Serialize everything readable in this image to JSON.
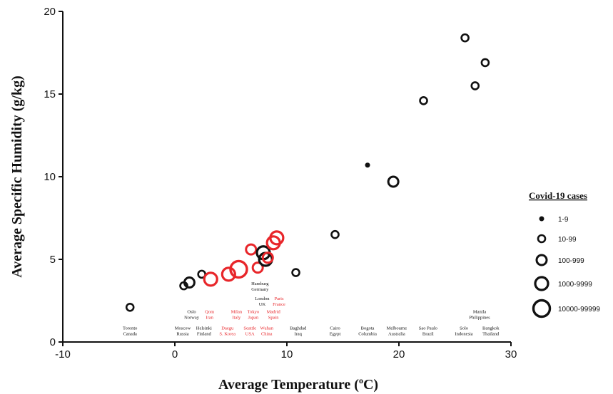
{
  "chart_data": {
    "type": "scatter",
    "xlabel": "Average Temperature (",
    "xlabel_sup": "o",
    "xlabel_end": "C)",
    "ylabel": "Average Specific Humidity (g/kg)",
    "xlim": [
      -10,
      30
    ],
    "ylim": [
      0,
      20
    ],
    "xticks": [
      -10,
      0,
      10,
      20,
      30
    ],
    "yticks": [
      0,
      5,
      10,
      15,
      20
    ],
    "colors": {
      "black": "#111111",
      "red": "#e8262a"
    },
    "points": [
      {
        "x": -4.0,
        "y": 2.1,
        "size": 1,
        "color": "black"
      },
      {
        "x": 0.8,
        "y": 3.4,
        "size": 1,
        "color": "black"
      },
      {
        "x": 1.3,
        "y": 3.6,
        "size": 2,
        "color": "black"
      },
      {
        "x": 2.4,
        "y": 4.1,
        "size": 1,
        "color": "black"
      },
      {
        "x": 3.2,
        "y": 3.8,
        "size": 3,
        "color": "red"
      },
      {
        "x": 4.8,
        "y": 4.1,
        "size": 3,
        "color": "red"
      },
      {
        "x": 5.7,
        "y": 4.4,
        "size": 4,
        "color": "red"
      },
      {
        "x": 6.8,
        "y": 5.6,
        "size": 2,
        "color": "red"
      },
      {
        "x": 7.4,
        "y": 4.5,
        "size": 2,
        "color": "red"
      },
      {
        "x": 7.9,
        "y": 5.4,
        "size": 3,
        "color": "black"
      },
      {
        "x": 8.1,
        "y": 5.0,
        "size": 3,
        "color": "black"
      },
      {
        "x": 8.3,
        "y": 5.1,
        "size": 2,
        "color": "red"
      },
      {
        "x": 8.8,
        "y": 6.0,
        "size": 3,
        "color": "red"
      },
      {
        "x": 9.1,
        "y": 6.3,
        "size": 3,
        "color": "red"
      },
      {
        "x": 10.8,
        "y": 4.2,
        "size": 1,
        "color": "black"
      },
      {
        "x": 14.3,
        "y": 6.5,
        "size": 1,
        "color": "black"
      },
      {
        "x": 17.2,
        "y": 10.7,
        "size": 0,
        "color": "black"
      },
      {
        "x": 19.5,
        "y": 9.7,
        "size": 2,
        "color": "black"
      },
      {
        "x": 22.2,
        "y": 14.6,
        "size": 1,
        "color": "black"
      },
      {
        "x": 25.9,
        "y": 18.4,
        "size": 1,
        "color": "black"
      },
      {
        "x": 26.8,
        "y": 15.5,
        "size": 1,
        "color": "black"
      },
      {
        "x": 27.7,
        "y": 16.9,
        "size": 1,
        "color": "black"
      }
    ],
    "city_labels": [
      {
        "lines": [
          "Toronto",
          "Canada"
        ],
        "x": -4.0,
        "y": 0.45,
        "color": "black"
      },
      {
        "lines": [
          "Moscow",
          "Russia"
        ],
        "x": 0.7,
        "y": 0.45,
        "color": "black"
      },
      {
        "lines": [
          "Helsinki",
          "Finland"
        ],
        "x": 2.6,
        "y": 0.45,
        "color": "black"
      },
      {
        "lines": [
          "Oslo",
          "Norway"
        ],
        "x": 1.5,
        "y": 1.45,
        "color": "black"
      },
      {
        "lines": [
          "Qom",
          "Iran"
        ],
        "x": 3.1,
        "y": 1.45,
        "color": "red"
      },
      {
        "lines": [
          "Daegu",
          "S. Korea"
        ],
        "x": 4.7,
        "y": 0.45,
        "color": "red"
      },
      {
        "lines": [
          "Milan",
          "Italy"
        ],
        "x": 5.5,
        "y": 1.45,
        "color": "red"
      },
      {
        "lines": [
          "Tokyo",
          "Japan"
        ],
        "x": 7.0,
        "y": 1.45,
        "color": "red"
      },
      {
        "lines": [
          "Seattle",
          "USA"
        ],
        "x": 6.7,
        "y": 0.45,
        "color": "red"
      },
      {
        "lines": [
          "Wuhan",
          "China"
        ],
        "x": 8.2,
        "y": 0.45,
        "color": "red"
      },
      {
        "lines": [
          "Madrid",
          "Spain"
        ],
        "x": 8.8,
        "y": 1.45,
        "color": "red"
      },
      {
        "lines": [
          "London",
          "UK"
        ],
        "x": 7.8,
        "y": 2.25,
        "color": "black"
      },
      {
        "lines": [
          "Paris",
          "France"
        ],
        "x": 9.3,
        "y": 2.25,
        "color": "red"
      },
      {
        "lines": [
          "Hamburg",
          "Germany"
        ],
        "x": 7.6,
        "y": 3.15,
        "color": "black"
      },
      {
        "lines": [
          "Baghdad",
          "Iraq"
        ],
        "x": 11.0,
        "y": 0.45,
        "color": "black"
      },
      {
        "lines": [
          "Cairo",
          "Egypt"
        ],
        "x": 14.3,
        "y": 0.45,
        "color": "black"
      },
      {
        "lines": [
          "Bogota",
          "Columbia"
        ],
        "x": 17.2,
        "y": 0.45,
        "color": "black"
      },
      {
        "lines": [
          "Melbourne",
          "Australia"
        ],
        "x": 19.8,
        "y": 0.45,
        "color": "black"
      },
      {
        "lines": [
          "Sao Paulo",
          "Brazil"
        ],
        "x": 22.6,
        "y": 0.45,
        "color": "black"
      },
      {
        "lines": [
          "Solo",
          "Indonesia"
        ],
        "x": 25.8,
        "y": 0.45,
        "color": "black"
      },
      {
        "lines": [
          "Bangkok",
          "Thailand"
        ],
        "x": 28.2,
        "y": 0.45,
        "color": "black"
      },
      {
        "lines": [
          "Manila",
          "Philippines"
        ],
        "x": 27.2,
        "y": 1.45,
        "color": "black"
      }
    ],
    "legend": {
      "title": "Covid-19 cases",
      "placement": "right",
      "entries": [
        {
          "label": "1-9",
          "size": 0
        },
        {
          "label": "10-99",
          "size": 1
        },
        {
          "label": "100-999",
          "size": 2
        },
        {
          "label": "1000-9999",
          "size": 3
        },
        {
          "label": "10000-99999",
          "size": 4
        }
      ]
    }
  }
}
